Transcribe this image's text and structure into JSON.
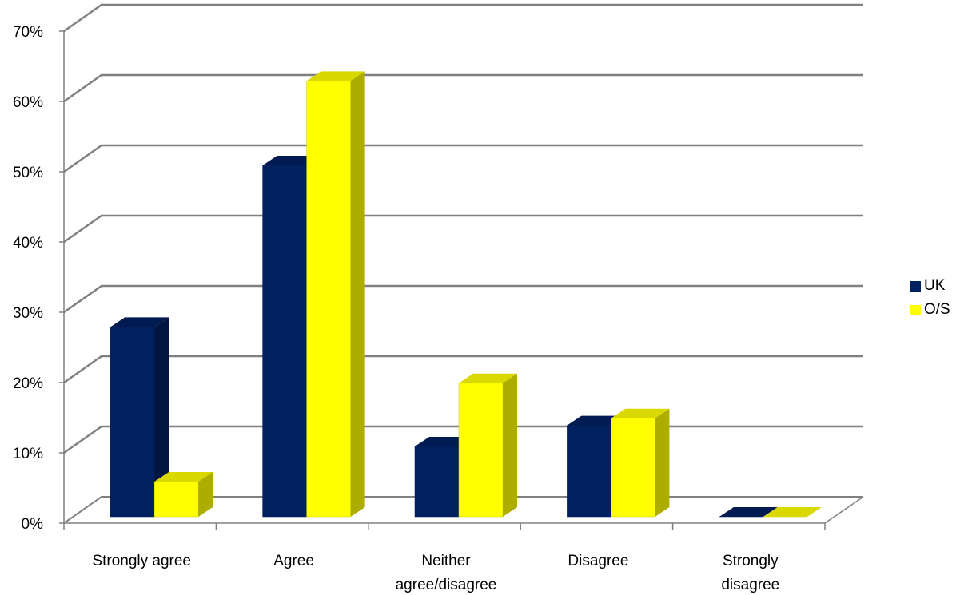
{
  "chart_data": {
    "type": "bar",
    "style": "3d-clustered-column",
    "categories": [
      "Strongly agree",
      "Agree",
      "Neither agree/disagree",
      "Disagree",
      "Strongly disagree"
    ],
    "category_lines": [
      [
        "Strongly agree"
      ],
      [
        "Agree"
      ],
      [
        "Neither",
        "agree/disagree"
      ],
      [
        "Disagree"
      ],
      [
        "Strongly",
        "disagree"
      ]
    ],
    "series": [
      {
        "name": "UK",
        "values": [
          27,
          50,
          10,
          13,
          0
        ],
        "color": "#002060"
      },
      {
        "name": "O/S",
        "values": [
          5,
          62,
          19,
          14,
          0
        ],
        "color": "#FFFF00"
      }
    ],
    "yticks": [
      "0%",
      "10%",
      "20%",
      "30%",
      "40%",
      "50%",
      "60%",
      "70%"
    ],
    "ylim": [
      0,
      70
    ],
    "grid": true,
    "legend_position": "right",
    "xlabel": "",
    "ylabel": ""
  }
}
